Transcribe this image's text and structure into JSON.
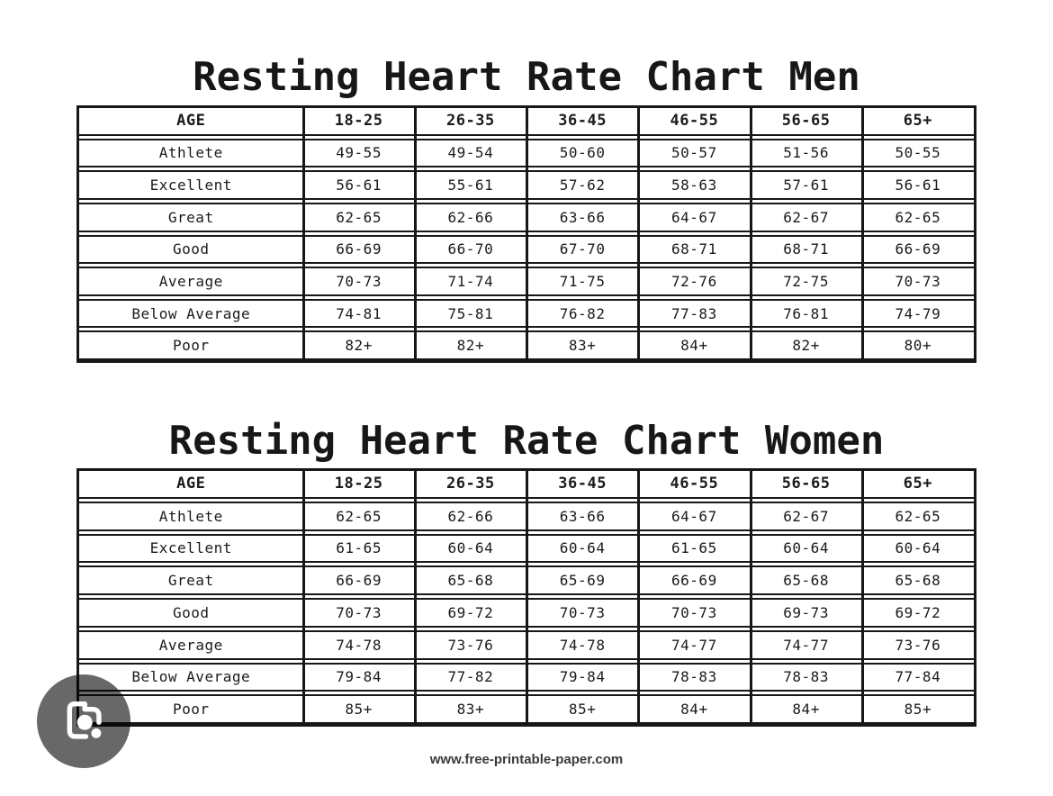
{
  "footer": {
    "url": "www.free-printable-paper.com"
  },
  "colors": {
    "background": "#ffffff",
    "table_border": "#171717",
    "text": "#1b1b1b",
    "lens_button_background": "#686868",
    "lens_glyph": "#ffffff"
  },
  "lens_button": {
    "icon": "camera-lens-icon"
  },
  "tables": [
    {
      "title": "Resting Heart Rate Chart Men",
      "columns": [
        "AGE",
        "18-25",
        "26-35",
        "36-45",
        "46-55",
        "56-65",
        "65+"
      ],
      "rows": [
        {
          "label": "Athlete",
          "values": [
            "49-55",
            "49-54",
            "50-60",
            "50-57",
            "51-56",
            "50-55"
          ]
        },
        {
          "label": "Excellent",
          "values": [
            "56-61",
            "55-61",
            "57-62",
            "58-63",
            "57-61",
            "56-61"
          ]
        },
        {
          "label": "Great",
          "values": [
            "62-65",
            "62-66",
            "63-66",
            "64-67",
            "62-67",
            "62-65"
          ]
        },
        {
          "label": "Good",
          "values": [
            "66-69",
            "66-70",
            "67-70",
            "68-71",
            "68-71",
            "66-69"
          ]
        },
        {
          "label": "Average",
          "values": [
            "70-73",
            "71-74",
            "71-75",
            "72-76",
            "72-75",
            "70-73"
          ]
        },
        {
          "label": "Below Average",
          "values": [
            "74-81",
            "75-81",
            "76-82",
            "77-83",
            "76-81",
            "74-79"
          ]
        },
        {
          "label": "Poor",
          "values": [
            "82+",
            "82+",
            "83+",
            "84+",
            "82+",
            "80+"
          ]
        }
      ]
    },
    {
      "title": "Resting Heart Rate Chart Women",
      "columns": [
        "AGE",
        "18-25",
        "26-35",
        "36-45",
        "46-55",
        "56-65",
        "65+"
      ],
      "rows": [
        {
          "label": "Athlete",
          "values": [
            "62-65",
            "62-66",
            "63-66",
            "64-67",
            "62-67",
            "62-65"
          ]
        },
        {
          "label": "Excellent",
          "values": [
            "61-65",
            "60-64",
            "60-64",
            "61-65",
            "60-64",
            "60-64"
          ]
        },
        {
          "label": "Great",
          "values": [
            "66-69",
            "65-68",
            "65-69",
            "66-69",
            "65-68",
            "65-68"
          ]
        },
        {
          "label": "Good",
          "values": [
            "70-73",
            "69-72",
            "70-73",
            "70-73",
            "69-73",
            "69-72"
          ]
        },
        {
          "label": "Average",
          "values": [
            "74-78",
            "73-76",
            "74-78",
            "74-77",
            "74-77",
            "73-76"
          ]
        },
        {
          "label": "Below Average",
          "values": [
            "79-84",
            "77-82",
            "79-84",
            "78-83",
            "78-83",
            "77-84"
          ]
        },
        {
          "label": "Poor",
          "values": [
            "85+",
            "83+",
            "85+",
            "84+",
            "84+",
            "85+"
          ]
        }
      ]
    }
  ]
}
